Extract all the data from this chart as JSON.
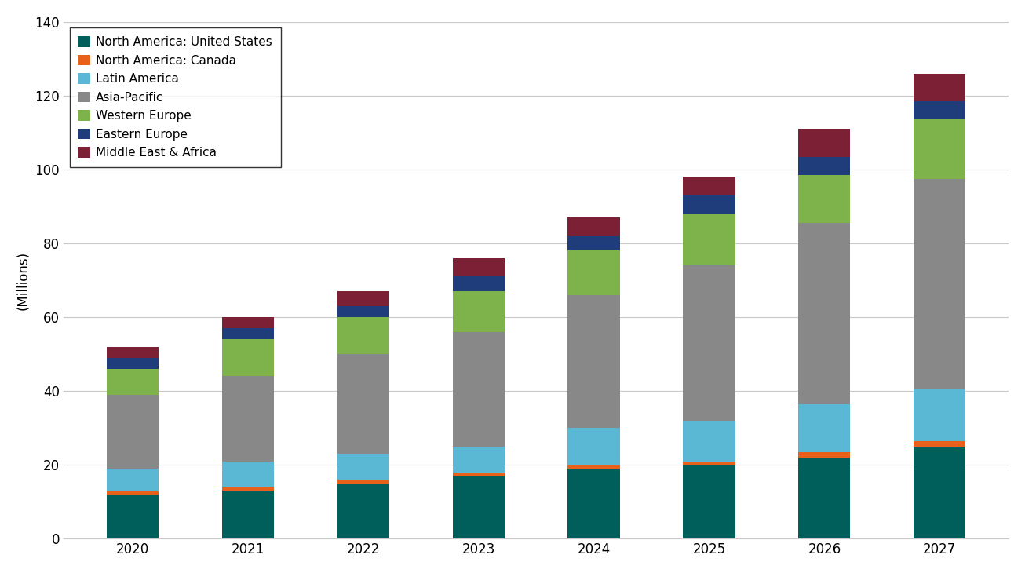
{
  "years": [
    2020,
    2021,
    2022,
    2023,
    2024,
    2025,
    2026,
    2027
  ],
  "regions": [
    "North America: United States",
    "North America: Canada",
    "Latin America",
    "Asia-Pacific",
    "Western Europe",
    "Eastern Europe",
    "Middle East & Africa"
  ],
  "colors": [
    "#005f5b",
    "#e8611a",
    "#5bb8d4",
    "#888888",
    "#7db34a",
    "#1f3d7a",
    "#7b2035"
  ],
  "values": {
    "North America: United States": [
      12,
      13,
      15,
      17,
      19,
      20,
      22,
      25
    ],
    "North America: Canada": [
      1,
      1,
      1,
      1,
      1,
      1,
      1.5,
      1.5
    ],
    "Latin America": [
      6,
      7,
      7,
      7,
      10,
      11,
      13,
      14
    ],
    "Asia-Pacific": [
      20,
      23,
      27,
      31,
      36,
      42,
      49,
      57
    ],
    "Western Europe": [
      7,
      10,
      10,
      11,
      12,
      14,
      13,
      16
    ],
    "Eastern Europe": [
      3,
      3,
      3,
      4,
      4,
      5,
      5,
      5
    ],
    "Middle East & Africa": [
      3,
      3,
      4,
      5,
      5,
      5,
      7.5,
      7.5
    ]
  },
  "ylabel": "(Millions)",
  "ylim": [
    0,
    140
  ],
  "yticks": [
    0,
    20,
    40,
    60,
    80,
    100,
    120,
    140
  ],
  "background_color": "#ffffff",
  "grid_color": "#c8c8c8",
  "bar_width": 0.45,
  "legend_fontsize": 11,
  "tick_fontsize": 12
}
